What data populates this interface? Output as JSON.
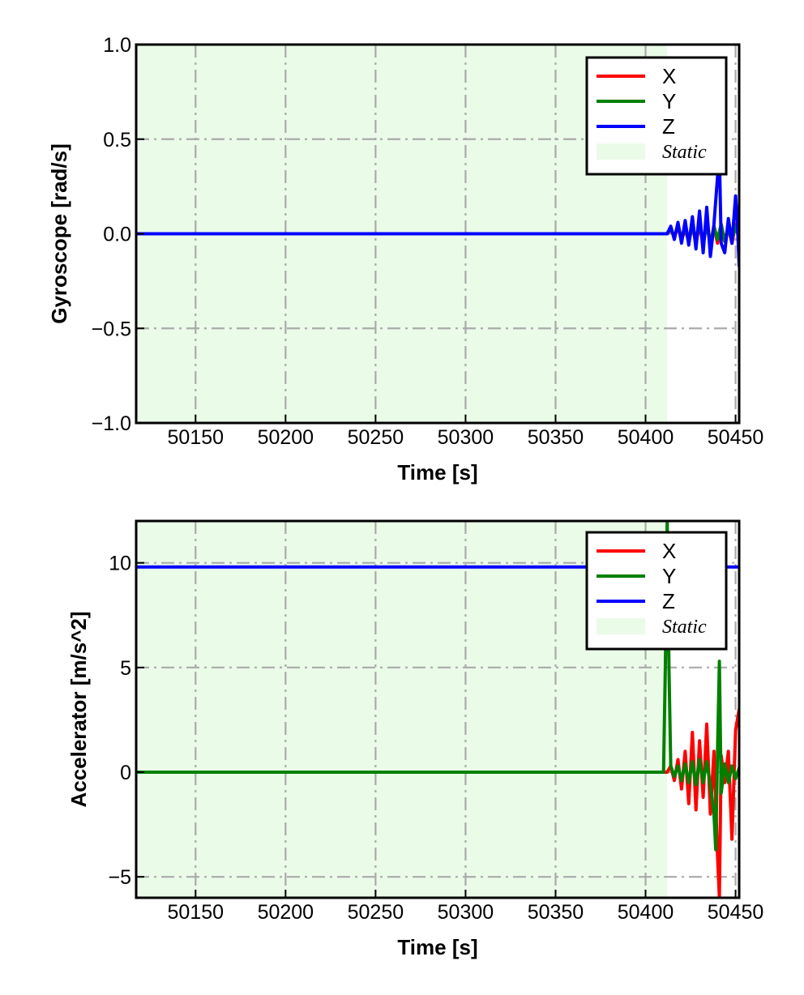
{
  "chart_data": [
    {
      "type": "line",
      "ylabel": "Gyroscope [rad/s]",
      "xlabel": "Time [s]",
      "xlim": [
        50117,
        50452
      ],
      "ylim": [
        -1.0,
        1.0
      ],
      "xticks": [
        50150,
        50200,
        50250,
        50300,
        50350,
        50400,
        50450
      ],
      "xtick_labels": [
        "50150",
        "50200",
        "50250",
        "50300",
        "50350",
        "50400",
        "50450"
      ],
      "yticks": [
        -1.0,
        -0.5,
        0.0,
        0.5,
        1.0
      ],
      "ytick_labels": [
        "−1.0",
        "−0.5",
        "0.0",
        "0.5",
        "1.0"
      ],
      "grid": true,
      "legend": "top-right",
      "static_region": {
        "label": "Static",
        "x0": 50117,
        "x1": 50412,
        "color": "#eafbe8"
      },
      "series": [
        {
          "name": "X",
          "color": "#ff0000",
          "x": [
            50117,
            50412,
            50414,
            50416,
            50418,
            50420,
            50422,
            50424,
            50426,
            50428,
            50430,
            50432,
            50434,
            50436,
            50438,
            50440,
            50442,
            50444,
            50446,
            50448,
            50450,
            50452
          ],
          "y": [
            0.0,
            0.0,
            0.02,
            -0.01,
            0.03,
            -0.03,
            0.02,
            -0.04,
            0.04,
            -0.05,
            0.05,
            -0.06,
            0.06,
            -0.05,
            0.04,
            -0.05,
            0.05,
            -0.04,
            0.03,
            -0.05,
            0.05,
            -0.03
          ]
        },
        {
          "name": "Y",
          "color": "#008000",
          "x": [
            50117,
            50412,
            50414,
            50416,
            50418,
            50420,
            50422,
            50424,
            50426,
            50428,
            50430,
            50432,
            50434,
            50436,
            50438,
            50440,
            50442,
            50444,
            50446,
            50448,
            50450,
            50452
          ],
          "y": [
            0.0,
            0.0,
            0.03,
            -0.02,
            0.05,
            -0.03,
            0.04,
            -0.05,
            0.05,
            -0.04,
            0.06,
            -0.05,
            0.05,
            -0.06,
            0.04,
            -0.03,
            0.05,
            -0.04,
            0.02,
            -0.03,
            0.04,
            -0.02
          ]
        },
        {
          "name": "Z",
          "color": "#0000ff",
          "x": [
            50117,
            50412,
            50414,
            50416,
            50418,
            50420,
            50422,
            50424,
            50426,
            50428,
            50430,
            50432,
            50434,
            50436,
            50438,
            50440,
            50441,
            50442,
            50444,
            50446,
            50448,
            50450,
            50451,
            50452
          ],
          "y": [
            0.0,
            0.0,
            0.04,
            -0.03,
            0.06,
            -0.05,
            0.07,
            -0.06,
            0.09,
            -0.08,
            0.12,
            -0.1,
            0.14,
            -0.12,
            0.05,
            0.3,
            0.42,
            -0.05,
            -0.1,
            0.08,
            -0.05,
            0.2,
            0.05,
            -0.17
          ]
        }
      ]
    },
    {
      "type": "line",
      "ylabel": "Accelerator [m/s^2]",
      "xlabel": "Time [s]",
      "xlim": [
        50117,
        50452
      ],
      "ylim": [
        -6.0,
        12.0
      ],
      "xticks": [
        50150,
        50200,
        50250,
        50300,
        50350,
        50400,
        50450
      ],
      "xtick_labels": [
        "50150",
        "50200",
        "50250",
        "50300",
        "50350",
        "50400",
        "50450"
      ],
      "yticks": [
        -5,
        0,
        5,
        10
      ],
      "ytick_labels": [
        "−5",
        "0",
        "5",
        "10"
      ],
      "grid": true,
      "legend": "top-right",
      "static_region": {
        "label": "Static",
        "x0": 50117,
        "x1": 50412,
        "color": "#eafbe8"
      },
      "series": [
        {
          "name": "X",
          "color": "#ff0000",
          "x": [
            50117,
            50412,
            50414,
            50416,
            50418,
            50420,
            50422,
            50424,
            50426,
            50428,
            50430,
            50432,
            50434,
            50436,
            50438,
            50440,
            50441,
            50442,
            50444,
            50446,
            50448,
            50450,
            50452
          ],
          "y": [
            0.0,
            0.0,
            0.3,
            -0.4,
            0.6,
            -0.8,
            1.0,
            -1.5,
            1.9,
            -1.8,
            1.5,
            -1.2,
            2.3,
            -2.0,
            1.0,
            -4.0,
            -6.0,
            0.8,
            -0.5,
            1.0,
            -3.2,
            2.0,
            3.0
          ]
        },
        {
          "name": "Y",
          "color": "#008000",
          "x": [
            50117,
            50410,
            50411,
            50412,
            50413,
            50414,
            50416,
            50418,
            50420,
            50422,
            50424,
            50426,
            50428,
            50430,
            50432,
            50434,
            50436,
            50438,
            50439,
            50440,
            50441,
            50442,
            50444,
            50446,
            50448,
            50450,
            50452
          ],
          "y": [
            0.0,
            0.0,
            5.0,
            12.0,
            5.0,
            0.3,
            -0.2,
            0.3,
            -0.4,
            0.4,
            -0.5,
            0.5,
            -0.6,
            0.6,
            -0.5,
            0.5,
            -0.6,
            -2.0,
            -3.7,
            1.0,
            5.3,
            -1.0,
            0.4,
            -0.5,
            0.3,
            -0.3,
            0.2
          ]
        },
        {
          "name": "Z",
          "color": "#0000ff",
          "x": [
            50117,
            50412,
            50452
          ],
          "y": [
            9.8,
            9.8,
            9.8
          ]
        }
      ]
    }
  ]
}
